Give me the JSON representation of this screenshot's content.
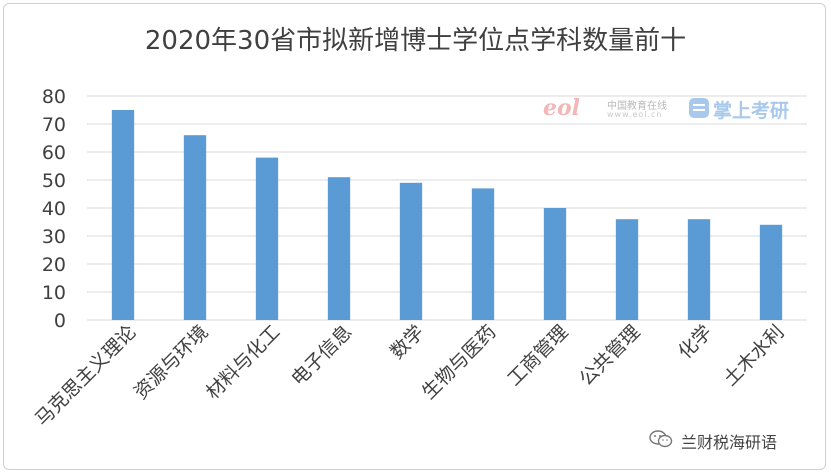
{
  "page": {
    "source_label": "兰财税海研语"
  },
  "watermarks": {
    "eol_logo": "eol",
    "eol_name": "中国教育在线",
    "eol_url": "www.eol.cn",
    "zs_name": "掌上考研",
    "eol_icon": "eol-logo-icon",
    "zs_icon": "zhangshang-kaoyan-icon"
  },
  "source_icon": "wechat-icon",
  "chart_data": {
    "type": "bar",
    "title": "2020年30省市拟新增博士学位点学科数量前十",
    "categories": [
      "马克思主义理论",
      "资源与环境",
      "材料与化工",
      "电子信息",
      "数学",
      "生物与医药",
      "工商管理",
      "公共管理",
      "化学",
      "土木水利"
    ],
    "values": [
      75,
      66,
      58,
      51,
      49,
      47,
      40,
      36,
      36,
      34
    ],
    "ylim": [
      0,
      80
    ],
    "yticks": [
      0,
      10,
      20,
      30,
      40,
      50,
      60,
      70,
      80
    ],
    "grid": true,
    "bar_color": "#5b9bd5",
    "grid_color": "#d9d9d9"
  }
}
